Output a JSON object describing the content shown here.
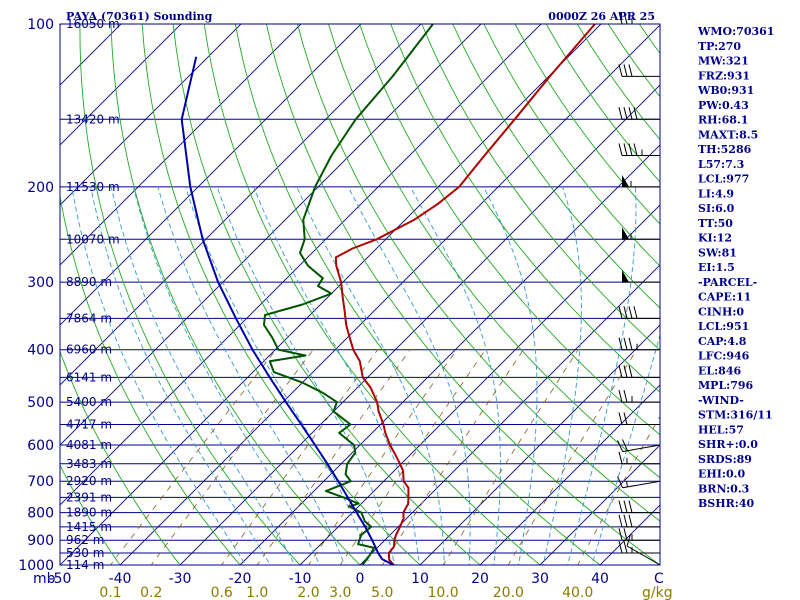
{
  "header": {
    "title": "PAYA (70361) Sounding",
    "valid_time": "0000Z 26 APR 25",
    "pressure_unit": "mb",
    "temp_unit": "C",
    "mixing_ratio_unit": "g/kg"
  },
  "indices": [
    "WMO:70361",
    "TP:270",
    "MW:321",
    "FRZ:931",
    "WB0:931",
    "PW:0.43",
    "RH:68.1",
    "MAXT:8.5",
    "TH:5286",
    "L57:7.3",
    "LCL:977",
    "LI:4.9",
    "SI:6.0",
    "TT:50",
    "KI:12",
    "SW:81",
    "EI:1.5",
    "-PARCEL-",
    "CAPE:11",
    "CINH:0",
    "LCL:951",
    "CAP:4.8",
    "LFC:946",
    "EL:846",
    "MPL:796",
    "-WIND-",
    "STM:316/11",
    "HEL:57",
    "SHR+:0.0",
    "SRDS:89",
    "EHI:0.0",
    "BRN:0.3",
    "BSHR:40"
  ],
  "colors": {
    "axes": "#00008b",
    "isobars": "#00008b",
    "isotherms": "#00008b",
    "dry_adiabats": "#22aa22",
    "moist_adiabats": "#3399cc",
    "mixing_ratio": "#806020",
    "temperature": "#b00000",
    "dewpoint": "#005500",
    "parcel": "#0000aa",
    "mixing_ratio_labels": "#8b7a00"
  },
  "chart_data": {
    "type": "line",
    "title": "PAYA (70361) Sounding",
    "subtitle": "0000Z 26 APR 25",
    "xlabel": "C",
    "ylabel": "mb",
    "xlim": [
      -50,
      50
    ],
    "ylim": [
      1000,
      100
    ],
    "y_scale": "log",
    "skew": "skew-T log-p",
    "grid": true,
    "pressure_ticks": [
      100,
      200,
      300,
      400,
      500,
      600,
      700,
      800,
      900,
      1000
    ],
    "temperature_ticks": [
      -50,
      -40,
      -30,
      -20,
      -10,
      0,
      10,
      20,
      30,
      40
    ],
    "mixing_ratio_ticks": [
      "0.1",
      "0.2",
      "0.6",
      "1.0",
      "2.0",
      "3.0",
      "5.0",
      "10.0",
      "20.0",
      "40.0"
    ],
    "mixing_ratio_values": [
      0.1,
      0.2,
      0.6,
      1.0,
      2.0,
      3.0,
      5.0,
      10.0,
      20.0,
      40.0
    ],
    "height_labels": [
      {
        "p": 100,
        "text": "16050 m"
      },
      {
        "p": 150,
        "text": "13420 m"
      },
      {
        "p": 200,
        "text": "11530 m"
      },
      {
        "p": 250,
        "text": "10070 m"
      },
      {
        "p": 300,
        "text": "8890 m"
      },
      {
        "p": 350,
        "text": "7864 m"
      },
      {
        "p": 400,
        "text": "6960 m"
      },
      {
        "p": 450,
        "text": "6141 m"
      },
      {
        "p": 500,
        "text": "5400 m"
      },
      {
        "p": 550,
        "text": "4717 m"
      },
      {
        "p": 600,
        "text": "4081 m"
      },
      {
        "p": 650,
        "text": "3483 m"
      },
      {
        "p": 700,
        "text": "2920 m"
      },
      {
        "p": 750,
        "text": "2391 m"
      },
      {
        "p": 800,
        "text": "1890 m"
      },
      {
        "p": 850,
        "text": "1415 m"
      },
      {
        "p": 900,
        "text": "962 m"
      },
      {
        "p": 950,
        "text": "530 m"
      },
      {
        "p": 1000,
        "text": "114 m"
      }
    ],
    "series": [
      {
        "name": "Temperature",
        "points": [
          [
            1000,
            5.6
          ],
          [
            978,
            4.0
          ],
          [
            950,
            2.8
          ],
          [
            925,
            2.6
          ],
          [
            900,
            1.6
          ],
          [
            880,
            1.0
          ],
          [
            850,
            0.3
          ],
          [
            820,
            -0.5
          ],
          [
            800,
            -1.5
          ],
          [
            770,
            -2.2
          ],
          [
            750,
            -3.2
          ],
          [
            720,
            -4.8
          ],
          [
            700,
            -6.7
          ],
          [
            670,
            -8.5
          ],
          [
            650,
            -10.2
          ],
          [
            620,
            -13.0
          ],
          [
            600,
            -15.0
          ],
          [
            570,
            -17.8
          ],
          [
            550,
            -19.5
          ],
          [
            520,
            -22.5
          ],
          [
            500,
            -24.3
          ],
          [
            470,
            -27.8
          ],
          [
            450,
            -30.8
          ],
          [
            420,
            -34.0
          ],
          [
            400,
            -37.0
          ],
          [
            380,
            -39.6
          ],
          [
            360,
            -42.3
          ],
          [
            340,
            -44.8
          ],
          [
            320,
            -47.5
          ],
          [
            300,
            -50.3
          ],
          [
            280,
            -53.8
          ],
          [
            270,
            -55.3
          ],
          [
            260,
            -54.0
          ],
          [
            250,
            -51.5
          ],
          [
            230,
            -48.5
          ],
          [
            215,
            -47.2
          ],
          [
            200,
            -46.5
          ],
          [
            175,
            -47.5
          ],
          [
            150,
            -48.5
          ],
          [
            125,
            -49.8
          ],
          [
            100,
            -51.0
          ]
        ]
      },
      {
        "name": "Dewpoint",
        "points": [
          [
            1000,
            0.4
          ],
          [
            960,
            0.0
          ],
          [
            930,
            -0.5
          ],
          [
            915,
            -3.8
          ],
          [
            880,
            -4.8
          ],
          [
            850,
            -4.5
          ],
          [
            830,
            -6.5
          ],
          [
            800,
            -8.5
          ],
          [
            780,
            -11.5
          ],
          [
            770,
            -10.5
          ],
          [
            750,
            -14.0
          ],
          [
            730,
            -18.0
          ],
          [
            700,
            -15.5
          ],
          [
            680,
            -17.5
          ],
          [
            650,
            -19.0
          ],
          [
            620,
            -19.5
          ],
          [
            600,
            -21.0
          ],
          [
            570,
            -25.5
          ],
          [
            550,
            -25.0
          ],
          [
            520,
            -30.0
          ],
          [
            500,
            -31.0
          ],
          [
            480,
            -35.0
          ],
          [
            460,
            -40.0
          ],
          [
            440,
            -46.5
          ],
          [
            420,
            -49.0
          ],
          [
            410,
            -44.0
          ],
          [
            400,
            -49.5
          ],
          [
            380,
            -52.5
          ],
          [
            360,
            -56.0
          ],
          [
            345,
            -57.5
          ],
          [
            330,
            -53.0
          ],
          [
            315,
            -50.0
          ],
          [
            305,
            -53.5
          ],
          [
            295,
            -54.0
          ],
          [
            280,
            -58.5
          ],
          [
            265,
            -62.0
          ],
          [
            250,
            -63.5
          ],
          [
            230,
            -67.0
          ],
          [
            200,
            -70.5
          ],
          [
            175,
            -73.0
          ],
          [
            150,
            -75.0
          ],
          [
            125,
            -76.0
          ],
          [
            100,
            -78.0
          ]
        ]
      },
      {
        "name": "Parcel",
        "points": [
          [
            1000,
            5.6
          ],
          [
            975,
            2.7
          ],
          [
            950,
            1.0
          ],
          [
            900,
            -2.1
          ],
          [
            850,
            -5.5
          ],
          [
            800,
            -9.3
          ],
          [
            750,
            -13.3
          ],
          [
            700,
            -17.6
          ],
          [
            650,
            -22.3
          ],
          [
            600,
            -27.5
          ],
          [
            550,
            -33.2
          ],
          [
            500,
            -39.5
          ],
          [
            450,
            -46.3
          ],
          [
            400,
            -53.8
          ],
          [
            350,
            -61.8
          ],
          [
            300,
            -70.8
          ],
          [
            250,
            -80.5
          ],
          [
            200,
            -91.3
          ],
          [
            150,
            -104.0
          ],
          [
            115,
            -112.0
          ]
        ]
      }
    ],
    "wind_barbs": [
      {
        "p": 1000,
        "dir": 300,
        "spd": 10
      },
      {
        "p": 950,
        "dir": 270,
        "spd": 25
      },
      {
        "p": 900,
        "dir": 270,
        "spd": 25
      },
      {
        "p": 850,
        "dir": 270,
        "spd": 30
      },
      {
        "p": 800,
        "dir": 270,
        "spd": 30
      },
      {
        "p": 700,
        "dir": 260,
        "spd": 15
      },
      {
        "p": 650,
        "dir": 270,
        "spd": 15
      },
      {
        "p": 600,
        "dir": 260,
        "spd": 20
      },
      {
        "p": 550,
        "dir": 270,
        "spd": 20
      },
      {
        "p": 500,
        "dir": 270,
        "spd": 25
      },
      {
        "p": 450,
        "dir": 270,
        "spd": 30
      },
      {
        "p": 400,
        "dir": 270,
        "spd": 35
      },
      {
        "p": 350,
        "dir": 270,
        "spd": 40
      },
      {
        "p": 300,
        "dir": 270,
        "spd": 50
      },
      {
        "p": 250,
        "dir": 270,
        "spd": 55
      },
      {
        "p": 200,
        "dir": 270,
        "spd": 55
      },
      {
        "p": 175,
        "dir": 270,
        "spd": 45
      },
      {
        "p": 150,
        "dir": 270,
        "spd": 40
      },
      {
        "p": 125,
        "dir": 270,
        "spd": 30
      },
      {
        "p": 100,
        "dir": 270,
        "spd": 25
      }
    ]
  }
}
